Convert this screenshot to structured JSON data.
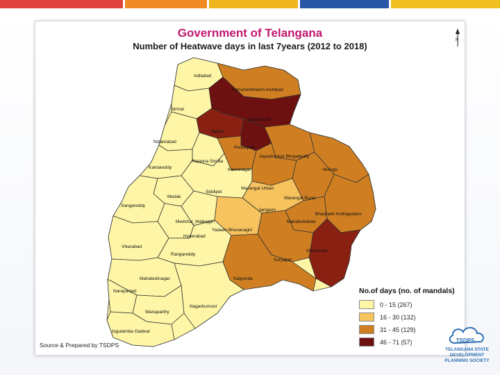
{
  "header": {
    "title": "Government of Telangana",
    "subtitle": "Number of Heatwave days in last 7years (2012 to 2018)"
  },
  "topbar_colors": [
    "#e0433b",
    "#f08a24",
    "#f0b41c",
    "#2a56a6",
    "#f0c020"
  ],
  "legend": {
    "title": "No.of days (no. of mandals)",
    "items": [
      {
        "label": "0 - 15 (267)",
        "color": "#fef6a6"
      },
      {
        "label": "16 - 30 (132)",
        "color": "#f7c35e"
      },
      {
        "label": "31 - 45 (129)",
        "color": "#cf7f22"
      },
      {
        "label": "46 - 71 (57)",
        "color": "#6d1010"
      }
    ]
  },
  "districts": [
    {
      "name": "Adilabad",
      "fill": "#fef6a6"
    },
    {
      "name": "Kumurambheem Asifabad",
      "fill": "#cf7f22"
    },
    {
      "name": "Nirmal",
      "fill": "#fef6a6"
    },
    {
      "name": "Mancherial",
      "fill": "#6d1010"
    },
    {
      "name": "Jagtial",
      "fill": "#8a2012"
    },
    {
      "name": "Nizamabad",
      "fill": "#fef6a6"
    },
    {
      "name": "Peddapalli",
      "fill": "#6d1010"
    },
    {
      "name": "Jayashankar Bhupalpally",
      "fill": "#cf7f22"
    },
    {
      "name": "Mulugu",
      "fill": "#cf7f22"
    },
    {
      "name": "Rajanna Sircilla",
      "fill": "#fef6a6"
    },
    {
      "name": "Kamareddy",
      "fill": "#fef6a6"
    },
    {
      "name": "Karimnagar",
      "fill": "#cf7f22"
    },
    {
      "name": "Warangal Urban",
      "fill": "#cf7f22"
    },
    {
      "name": "Siddipet",
      "fill": "#fef6a6"
    },
    {
      "name": "Medak",
      "fill": "#fef6a6"
    },
    {
      "name": "Warangal Rural",
      "fill": "#cf7f22"
    },
    {
      "name": "Sangareddy",
      "fill": "#fef6a6"
    },
    {
      "name": "Jangaon",
      "fill": "#f7c35e"
    },
    {
      "name": "Bhadradri Kothagudem",
      "fill": "#cf7f22"
    },
    {
      "name": "Mahabubabad",
      "fill": "#cf7f22"
    },
    {
      "name": "Medchal_Malkajgiri",
      "fill": "#fef6a6"
    },
    {
      "name": "Yadadri Bhuvanagiri",
      "fill": "#f7c35e"
    },
    {
      "name": "Hyderabad",
      "fill": "#fef6a6"
    },
    {
      "name": "Vikarabad",
      "fill": "#fef6a6"
    },
    {
      "name": "Rangareddy",
      "fill": "#fef6a6"
    },
    {
      "name": "Khammam",
      "fill": "#8a2012"
    },
    {
      "name": "Suryapet",
      "fill": "#cf7f22"
    },
    {
      "name": "Nalgonda",
      "fill": "#cf7f22"
    },
    {
      "name": "Mahabubnagar",
      "fill": "#fef6a6"
    },
    {
      "name": "Narayanpet",
      "fill": "#fef6a6"
    },
    {
      "name": "Nagarkurnool",
      "fill": "#fef6a6"
    },
    {
      "name": "Wanaparthy",
      "fill": "#fef6a6"
    },
    {
      "name": "Jogulamba Gadwal",
      "fill": "#fef6a6"
    }
  ],
  "footer": {
    "source": "Source & Prepared by TSDPS"
  },
  "logo": {
    "abbr": "TSDPS",
    "line1": "TELANGANA STATE",
    "line2": "DEVELOPMENT",
    "line3": "PLANNING SOCIETY"
  }
}
